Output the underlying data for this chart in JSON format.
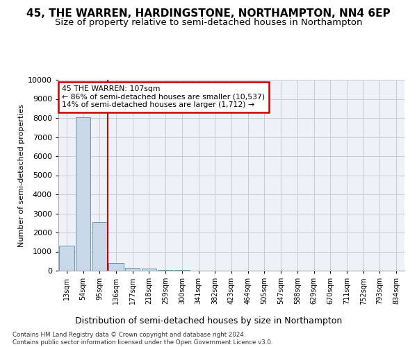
{
  "title_line1": "45, THE WARREN, HARDINGSTONE, NORTHAMPTON, NN4 6EP",
  "title_line2": "Size of property relative to semi-detached houses in Northampton",
  "xlabel": "Distribution of semi-detached houses by size in Northampton",
  "ylabel": "Number of semi-detached properties",
  "footnote": "Contains HM Land Registry data © Crown copyright and database right 2024.\nContains public sector information licensed under the Open Government Licence v3.0.",
  "bin_labels": [
    "13sqm",
    "54sqm",
    "95sqm",
    "136sqm",
    "177sqm",
    "218sqm",
    "259sqm",
    "300sqm",
    "341sqm",
    "382sqm",
    "423sqm",
    "464sqm",
    "505sqm",
    "547sqm",
    "588sqm",
    "629sqm",
    "670sqm",
    "711sqm",
    "752sqm",
    "793sqm",
    "834sqm"
  ],
  "bar_values": [
    1310,
    8050,
    2530,
    400,
    150,
    100,
    50,
    20,
    10,
    5,
    3,
    2,
    1,
    1,
    0,
    0,
    0,
    0,
    0,
    0,
    0
  ],
  "bar_color": "#c8d8e8",
  "bar_edge_color": "#5588aa",
  "annotation_text": "45 THE WARREN: 107sqm\n← 86% of semi-detached houses are smaller (10,537)\n14% of semi-detached houses are larger (1,712) →",
  "annotation_box_color": "#ffffff",
  "annotation_box_edge": "#cc0000",
  "vline_color": "#cc0000",
  "vline_pos": 2.5,
  "ylim": [
    0,
    10000
  ],
  "yticks": [
    0,
    1000,
    2000,
    3000,
    4000,
    5000,
    6000,
    7000,
    8000,
    9000,
    10000
  ],
  "grid_color": "#cccccc",
  "bg_color": "#eef2f8",
  "title1_fontsize": 11,
  "title2_fontsize": 9.5,
  "ylabel_fontsize": 8,
  "xlabel_fontsize": 9
}
